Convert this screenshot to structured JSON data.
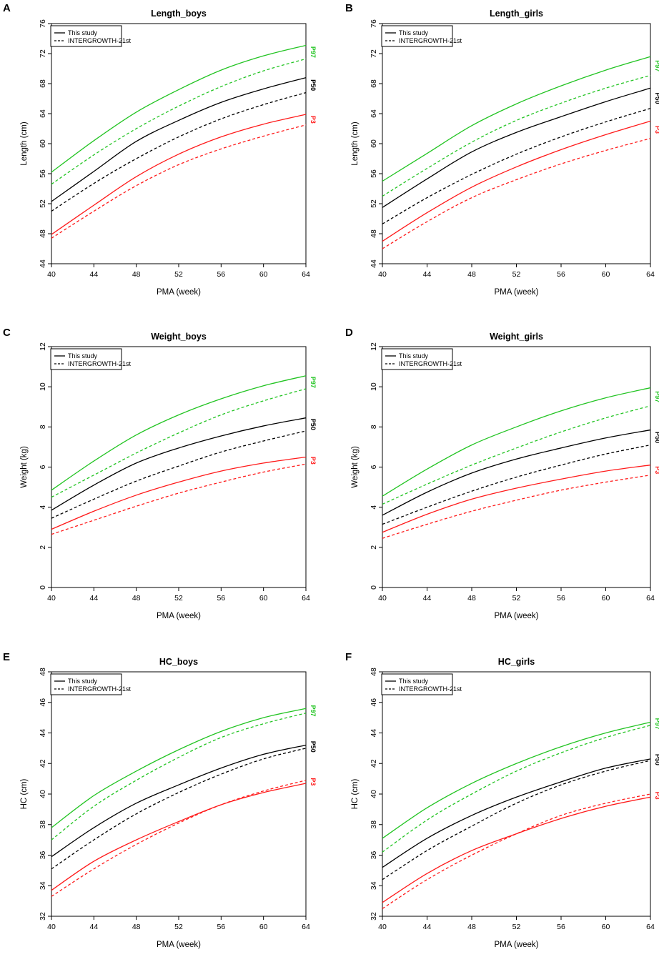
{
  "figure": {
    "panel_letters": [
      "A",
      "B",
      "C",
      "D",
      "E",
      "F"
    ]
  },
  "legend": {
    "this_study": "This study",
    "intergrowth": "INTERGROWTH-21st"
  },
  "colors": {
    "P97": "#22c422",
    "P50": "#000000",
    "P3": "#ff1a1a"
  },
  "chart_data": [
    {
      "type": "line",
      "panel": "A",
      "title": "Length_boys",
      "xlabel": "PMA (week)",
      "ylabel": "Length (cm)",
      "xlim": [
        40,
        64
      ],
      "ylim": [
        44,
        76
      ],
      "xticks": [
        40,
        44,
        48,
        52,
        56,
        60,
        64
      ],
      "yticks": [
        44,
        48,
        52,
        56,
        60,
        64,
        68,
        72,
        76
      ],
      "x": [
        40,
        44,
        48,
        52,
        56,
        60,
        64
      ],
      "series": [
        {
          "name": "P97",
          "source": "This study",
          "values": [
            56.2,
            60.4,
            64.2,
            67.2,
            69.8,
            71.7,
            73.1
          ]
        },
        {
          "name": "P97",
          "source": "INTERGROWTH-21st",
          "values": [
            54.6,
            58.5,
            62.0,
            65.0,
            67.6,
            69.7,
            71.3
          ]
        },
        {
          "name": "P50",
          "source": "This study",
          "values": [
            52.3,
            56.3,
            60.3,
            63.1,
            65.5,
            67.3,
            68.8
          ]
        },
        {
          "name": "P50",
          "source": "INTERGROWTH-21st",
          "values": [
            51.0,
            54.7,
            58.0,
            60.9,
            63.3,
            65.2,
            66.8
          ]
        },
        {
          "name": "P3",
          "source": "This study",
          "values": [
            47.9,
            51.8,
            55.6,
            58.6,
            60.9,
            62.6,
            63.9
          ]
        },
        {
          "name": "P3",
          "source": "INTERGROWTH-21st",
          "values": [
            47.4,
            51.0,
            54.4,
            57.2,
            59.3,
            61.0,
            62.5
          ]
        }
      ],
      "end_labels": [
        "P97",
        "P50",
        "P3"
      ]
    },
    {
      "type": "line",
      "panel": "B",
      "title": "Length_girls",
      "xlabel": "PMA (week)",
      "ylabel": "Length (cm)",
      "xlim": [
        40,
        64
      ],
      "ylim": [
        44,
        76
      ],
      "xticks": [
        40,
        44,
        48,
        52,
        56,
        60,
        64
      ],
      "yticks": [
        44,
        48,
        52,
        56,
        60,
        64,
        68,
        72,
        76
      ],
      "x": [
        40,
        44,
        48,
        52,
        56,
        60,
        64
      ],
      "series": [
        {
          "name": "P97",
          "source": "This study",
          "values": [
            55.0,
            58.7,
            62.4,
            65.3,
            67.7,
            69.8,
            71.6
          ]
        },
        {
          "name": "P97",
          "source": "INTERGROWTH-21st",
          "values": [
            53.0,
            56.7,
            60.2,
            63.1,
            65.4,
            67.4,
            69.1
          ]
        },
        {
          "name": "P50",
          "source": "This study",
          "values": [
            51.5,
            55.3,
            58.9,
            61.5,
            63.6,
            65.6,
            67.4
          ]
        },
        {
          "name": "P50",
          "source": "INTERGROWTH-21st",
          "values": [
            49.3,
            52.8,
            55.9,
            58.6,
            60.9,
            62.9,
            64.7
          ]
        },
        {
          "name": "P3",
          "source": "This study",
          "values": [
            47.0,
            50.8,
            54.2,
            56.9,
            59.2,
            61.2,
            63.0
          ]
        },
        {
          "name": "P3",
          "source": "INTERGROWTH-21st",
          "values": [
            46.0,
            49.6,
            52.8,
            55.2,
            57.3,
            59.1,
            60.7
          ]
        }
      ],
      "end_labels": [
        "P97",
        "P50",
        "P3"
      ]
    },
    {
      "type": "line",
      "panel": "C",
      "title": "Weight_boys",
      "xlabel": "PMA (week)",
      "ylabel": "Weight (kg)",
      "xlim": [
        40,
        64
      ],
      "ylim": [
        0,
        12
      ],
      "xticks": [
        40,
        44,
        48,
        52,
        56,
        60,
        64
      ],
      "yticks": [
        0,
        2,
        4,
        6,
        8,
        10,
        12
      ],
      "x": [
        40,
        44,
        48,
        52,
        56,
        60,
        64
      ],
      "series": [
        {
          "name": "P97",
          "source": "This study",
          "values": [
            4.85,
            6.3,
            7.6,
            8.6,
            9.4,
            10.05,
            10.55
          ]
        },
        {
          "name": "P97",
          "source": "INTERGROWTH-21st",
          "values": [
            4.5,
            5.6,
            6.7,
            7.7,
            8.6,
            9.3,
            9.9
          ]
        },
        {
          "name": "P50",
          "source": "This study",
          "values": [
            3.85,
            5.1,
            6.2,
            6.95,
            7.55,
            8.05,
            8.45
          ]
        },
        {
          "name": "P50",
          "source": "INTERGROWTH-21st",
          "values": [
            3.45,
            4.4,
            5.3,
            6.05,
            6.75,
            7.3,
            7.8
          ]
        },
        {
          "name": "P3",
          "source": "This study",
          "values": [
            2.9,
            3.8,
            4.6,
            5.25,
            5.8,
            6.2,
            6.5
          ]
        },
        {
          "name": "P3",
          "source": "INTERGROWTH-21st",
          "values": [
            2.65,
            3.35,
            4.05,
            4.7,
            5.25,
            5.75,
            6.15
          ]
        }
      ],
      "end_labels": [
        "P97",
        "P50",
        "P3"
      ]
    },
    {
      "type": "line",
      "panel": "D",
      "title": "Weight_girls",
      "xlabel": "PMA (week)",
      "ylabel": "Weight (kg)",
      "xlim": [
        40,
        64
      ],
      "ylim": [
        0,
        12
      ],
      "xticks": [
        40,
        44,
        48,
        52,
        56,
        60,
        64
      ],
      "yticks": [
        0,
        2,
        4,
        6,
        8,
        10,
        12
      ],
      "x": [
        40,
        44,
        48,
        52,
        56,
        60,
        64
      ],
      "series": [
        {
          "name": "P97",
          "source": "This study",
          "values": [
            4.55,
            5.9,
            7.1,
            8.0,
            8.8,
            9.45,
            9.95
          ]
        },
        {
          "name": "P97",
          "source": "INTERGROWTH-21st",
          "values": [
            4.15,
            5.15,
            6.1,
            6.95,
            7.75,
            8.45,
            9.05
          ]
        },
        {
          "name": "P50",
          "source": "This study",
          "values": [
            3.6,
            4.75,
            5.7,
            6.4,
            6.95,
            7.45,
            7.85
          ]
        },
        {
          "name": "P50",
          "source": "INTERGROWTH-21st",
          "values": [
            3.15,
            4.0,
            4.8,
            5.5,
            6.1,
            6.65,
            7.1
          ]
        },
        {
          "name": "P3",
          "source": "This study",
          "values": [
            2.75,
            3.65,
            4.4,
            4.95,
            5.4,
            5.8,
            6.1
          ]
        },
        {
          "name": "P3",
          "source": "INTERGROWTH-21st",
          "values": [
            2.45,
            3.15,
            3.8,
            4.35,
            4.85,
            5.25,
            5.6
          ]
        }
      ],
      "end_labels": [
        "P97",
        "P50",
        "P3"
      ]
    },
    {
      "type": "line",
      "panel": "E",
      "title": "HC_boys",
      "xlabel": "PMA (week)",
      "ylabel": "HC (cm)",
      "xlim": [
        40,
        64
      ],
      "ylim": [
        32,
        48
      ],
      "xticks": [
        40,
        44,
        48,
        52,
        56,
        60,
        64
      ],
      "yticks": [
        32,
        34,
        36,
        38,
        40,
        42,
        44,
        46,
        48
      ],
      "x": [
        40,
        44,
        48,
        52,
        56,
        60,
        64
      ],
      "series": [
        {
          "name": "P97",
          "source": "This study",
          "values": [
            37.8,
            39.9,
            41.5,
            42.9,
            44.1,
            45.0,
            45.6
          ]
        },
        {
          "name": "P97",
          "source": "INTERGROWTH-21st",
          "values": [
            37.0,
            39.2,
            40.9,
            42.4,
            43.7,
            44.6,
            45.3
          ]
        },
        {
          "name": "P50",
          "source": "This study",
          "values": [
            35.9,
            37.8,
            39.4,
            40.6,
            41.7,
            42.6,
            43.2
          ]
        },
        {
          "name": "P50",
          "source": "INTERGROWTH-21st",
          "values": [
            35.1,
            37.0,
            38.7,
            40.1,
            41.3,
            42.3,
            43.0
          ]
        },
        {
          "name": "P3",
          "source": "This study",
          "values": [
            33.7,
            35.6,
            37.0,
            38.2,
            39.3,
            40.1,
            40.7
          ]
        },
        {
          "name": "P3",
          "source": "INTERGROWTH-21st",
          "values": [
            33.3,
            35.1,
            36.7,
            38.1,
            39.3,
            40.2,
            40.9
          ]
        }
      ],
      "end_labels": [
        "P97",
        "P50",
        "P3"
      ]
    },
    {
      "type": "line",
      "panel": "F",
      "title": "HC_girls",
      "xlabel": "PMA (week)",
      "ylabel": "HC (cm)",
      "xlim": [
        40,
        64
      ],
      "ylim": [
        32,
        48
      ],
      "xticks": [
        40,
        44,
        48,
        52,
        56,
        60,
        64
      ],
      "yticks": [
        32,
        34,
        36,
        38,
        40,
        42,
        44,
        46,
        48
      ],
      "x": [
        40,
        44,
        48,
        52,
        56,
        60,
        64
      ],
      "series": [
        {
          "name": "P97",
          "source": "This study",
          "values": [
            37.1,
            39.1,
            40.7,
            42.0,
            43.1,
            44.0,
            44.7
          ]
        },
        {
          "name": "P97",
          "source": "INTERGROWTH-21st",
          "values": [
            36.2,
            38.3,
            40.0,
            41.5,
            42.7,
            43.7,
            44.5
          ]
        },
        {
          "name": "P50",
          "source": "This study",
          "values": [
            35.2,
            37.1,
            38.6,
            39.8,
            40.8,
            41.7,
            42.3
          ]
        },
        {
          "name": "P50",
          "source": "INTERGROWTH-21st",
          "values": [
            34.4,
            36.3,
            37.9,
            39.4,
            40.6,
            41.5,
            42.2
          ]
        },
        {
          "name": "P3",
          "source": "This study",
          "values": [
            32.9,
            34.8,
            36.3,
            37.4,
            38.4,
            39.2,
            39.8
          ]
        },
        {
          "name": "P3",
          "source": "INTERGROWTH-21st",
          "values": [
            32.5,
            34.4,
            36.0,
            37.4,
            38.6,
            39.4,
            40.0
          ]
        }
      ],
      "end_labels": [
        "P97",
        "P50",
        "P3"
      ]
    }
  ]
}
